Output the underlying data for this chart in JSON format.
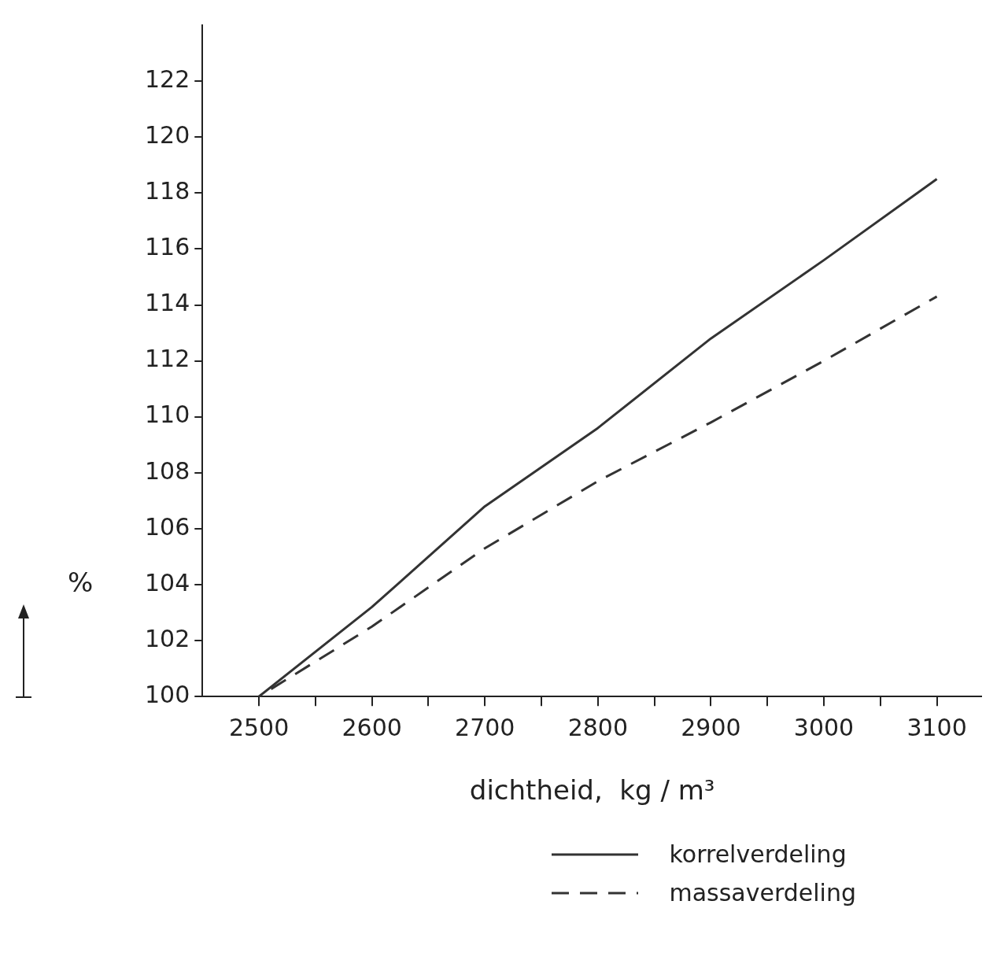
{
  "chart_data": {
    "type": "line",
    "xlabel": "dichtheid,  kg / m³",
    "ylabel": "%",
    "x": [
      2500,
      2600,
      2700,
      2800,
      2900,
      3000,
      3100
    ],
    "series": [
      {
        "name": "korrelverdeling",
        "color": "#333333",
        "line_style": "solid",
        "values": [
          100,
          103.2,
          106.8,
          109.6,
          112.8,
          115.6,
          118.5
        ]
      },
      {
        "name": "massaverdeling",
        "color": "#333333",
        "line_style": "dashed",
        "values": [
          100,
          102.5,
          105.3,
          107.7,
          109.8,
          112.0,
          114.3
        ]
      }
    ],
    "xlim": [
      2450,
      3140
    ],
    "ylim": [
      100,
      124
    ],
    "xticks": [
      2500,
      {
        "value": 2550,
        "label": null
      },
      2600,
      {
        "value": 2650,
        "label": null
      },
      2700,
      {
        "value": 2750,
        "label": null
      },
      2800,
      {
        "value": 2850,
        "label": null
      },
      2900,
      {
        "value": 2950,
        "label": null
      },
      3000,
      {
        "value": 3050,
        "label": null
      },
      3100
    ],
    "yticks": [
      100,
      102,
      104,
      106,
      108,
      110,
      112,
      114,
      116,
      118,
      120,
      122
    ],
    "grid": false,
    "legend": "bottom right",
    "marker": "none"
  }
}
